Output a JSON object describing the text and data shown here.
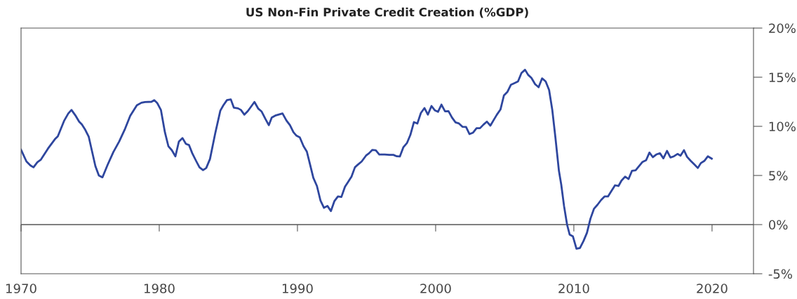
{
  "chart_data": {
    "type": "line",
    "title": "US Non-Fin Private Credit Creation (%GDP)",
    "xlim": [
      1970,
      2023
    ],
    "xticks": [
      1970,
      1980,
      1990,
      2000,
      2010,
      2020
    ],
    "ylim": [
      -5,
      20
    ],
    "yticks": [
      {
        "value": -5,
        "label": "-5%"
      },
      {
        "value": 0,
        "label": "0%"
      },
      {
        "value": 5,
        "label": "5%"
      },
      {
        "value": 10,
        "label": "10%"
      },
      {
        "value": 15,
        "label": "15%"
      },
      {
        "value": 20,
        "label": "20%"
      }
    ],
    "ref_lines": [
      {
        "axis": "y",
        "value": 0,
        "color": "#555555"
      }
    ],
    "series": [
      {
        "color": "#2e469e",
        "x": [
          1970.0,
          1970.39,
          1970.68,
          1970.9,
          1971.18,
          1971.44,
          1971.95,
          1972.45,
          1972.66,
          1973.13,
          1973.42,
          1973.65,
          1973.93,
          1974.2,
          1974.4,
          1974.65,
          1974.9,
          1975.13,
          1975.38,
          1975.63,
          1975.89,
          1976.26,
          1976.68,
          1977.1,
          1977.53,
          1977.9,
          1978.38,
          1978.71,
          1978.97,
          1979.44,
          1979.64,
          1979.85,
          1980.12,
          1980.41,
          1980.66,
          1980.91,
          1981.17,
          1981.42,
          1981.68,
          1981.93,
          1982.15,
          1982.39,
          1982.66,
          1982.91,
          1983.17,
          1983.4,
          1983.67,
          1984.05,
          1984.42,
          1984.64,
          1984.9,
          1985.18,
          1985.4,
          1985.7,
          1985.91,
          1986.16,
          1986.41,
          1986.89,
          1987.17,
          1987.4,
          1987.68,
          1987.93,
          1988.14,
          1988.44,
          1988.92,
          1989.2,
          1989.46,
          1989.71,
          1989.93,
          1990.17,
          1990.44,
          1990.68,
          1990.9,
          1991.15,
          1991.41,
          1991.67,
          1991.92,
          1992.17,
          1992.42,
          1992.67,
          1992.93,
          1993.18,
          1993.44,
          1993.69,
          1993.91,
          1994.16,
          1994.37,
          1994.65,
          1994.96,
          1995.18,
          1995.42,
          1995.67,
          1995.92,
          1996.31,
          1996.65,
          1996.94,
          1997.19,
          1997.41,
          1997.66,
          1997.92,
          1998.17,
          1998.43,
          1998.68,
          1998.93,
          1999.19,
          1999.44,
          1999.7,
          1999.95,
          2000.17,
          2000.42,
          2000.68,
          2000.93,
          2001.18,
          2001.44,
          2001.69,
          2001.95,
          2002.2,
          2002.45,
          2002.71,
          2002.96,
          2003.21,
          2003.47,
          2003.71,
          2003.96,
          2004.21,
          2004.43,
          2004.69,
          2004.94,
          2005.2,
          2005.45,
          2005.7,
          2005.96,
          2006.21,
          2006.47,
          2006.69,
          2006.93,
          2007.2,
          2007.45,
          2007.7,
          2007.96,
          2008.21,
          2008.44,
          2008.67,
          2008.92,
          2009.09,
          2009.29,
          2009.51,
          2009.7,
          2009.93,
          2010.19,
          2010.44,
          2010.7,
          2010.95,
          2011.2,
          2011.46,
          2011.71,
          2011.97,
          2012.22,
          2012.47,
          2012.73,
          2012.98,
          2013.23,
          2013.45,
          2013.71,
          2013.96,
          2014.21,
          2014.47,
          2014.72,
          2014.97,
          2015.23,
          2015.47,
          2015.72,
          2015.97,
          2016.23,
          2016.48,
          2016.74,
          2016.99,
          2017.24,
          2017.5,
          2017.72,
          2017.97,
          2018.19,
          2018.46,
          2018.72,
          2018.97,
          2019.19,
          2019.44,
          2019.7,
          2019.98
        ],
        "values": [
          7.62,
          6.43,
          6.02,
          5.83,
          6.35,
          6.62,
          7.74,
          8.69,
          8.98,
          10.6,
          11.31,
          11.67,
          11.12,
          10.48,
          10.19,
          9.64,
          8.93,
          7.5,
          5.95,
          5.0,
          4.81,
          6.07,
          7.38,
          8.45,
          9.76,
          11.07,
          12.14,
          12.4,
          12.48,
          12.5,
          12.67,
          12.38,
          11.67,
          9.4,
          7.98,
          7.57,
          6.95,
          8.45,
          8.81,
          8.21,
          8.1,
          7.26,
          6.5,
          5.83,
          5.55,
          5.76,
          6.67,
          9.29,
          11.6,
          12.14,
          12.67,
          12.74,
          11.9,
          11.83,
          11.67,
          11.19,
          11.55,
          12.48,
          11.79,
          11.52,
          10.76,
          10.12,
          10.9,
          11.12,
          11.31,
          10.6,
          10.12,
          9.4,
          9.05,
          8.88,
          7.98,
          7.43,
          6.19,
          4.76,
          3.93,
          2.43,
          1.71,
          1.9,
          1.38,
          2.38,
          2.86,
          2.81,
          3.86,
          4.4,
          4.88,
          5.83,
          6.1,
          6.43,
          7.02,
          7.26,
          7.6,
          7.57,
          7.14,
          7.14,
          7.1,
          7.1,
          6.95,
          6.93,
          7.86,
          8.29,
          9.12,
          10.43,
          10.29,
          11.36,
          11.86,
          11.19,
          12.07,
          11.62,
          11.48,
          12.21,
          11.52,
          11.55,
          10.9,
          10.4,
          10.29,
          9.95,
          9.93,
          9.21,
          9.36,
          9.81,
          9.81,
          10.19,
          10.48,
          10.07,
          10.67,
          11.19,
          11.71,
          13.14,
          13.52,
          14.24,
          14.4,
          14.57,
          15.43,
          15.76,
          15.24,
          14.93,
          14.29,
          13.98,
          14.88,
          14.57,
          13.69,
          11.67,
          8.81,
          5.48,
          4.05,
          1.9,
          0.0,
          -1.02,
          -1.19,
          -2.45,
          -2.38,
          -1.67,
          -0.83,
          0.6,
          1.62,
          2.02,
          2.5,
          2.86,
          2.86,
          3.45,
          4.0,
          3.93,
          4.48,
          4.88,
          4.64,
          5.48,
          5.52,
          5.95,
          6.38,
          6.55,
          7.33,
          6.86,
          7.14,
          7.26,
          6.74,
          7.5,
          6.83,
          6.95,
          7.19,
          7.02,
          7.57,
          6.9,
          6.48,
          6.12,
          5.76,
          6.26,
          6.48,
          6.95,
          6.71
        ]
      }
    ]
  }
}
